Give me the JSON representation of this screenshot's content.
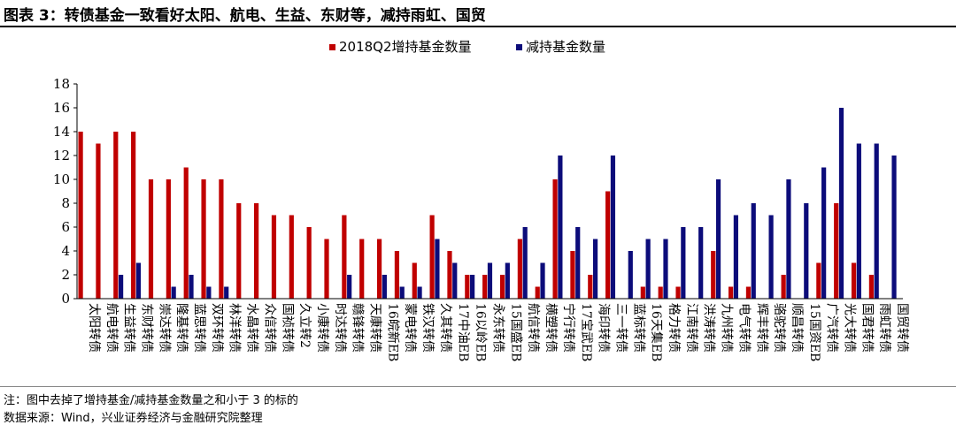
{
  "figure_title": "图表 3：转债基金一致看好太阳、航电、生益、东财等，减持雨虹、国贸",
  "notes": {
    "note": "注：图中去掉了增持基金/减持基金数量之和小于 3 的标的",
    "source": "数据来源：Wind，兴业证券经济与金融研究院整理"
  },
  "colors": {
    "increase": "#c00000",
    "decrease": "#0c0c7a",
    "axis": "#000000"
  },
  "chart_data": {
    "type": "bar",
    "legend_position": "top-center",
    "grid": false,
    "ylim": [
      0,
      18
    ],
    "yticks": [
      0,
      2,
      4,
      6,
      8,
      10,
      12,
      14,
      16,
      18
    ],
    "categories": [
      "太阳转债",
      "航电转债",
      "生益转债",
      "东财转债",
      "崇达转债",
      "隆基转债",
      "蓝思转债",
      "双环转债",
      "林洋转债",
      "水晶转债",
      "众信转债",
      "国祯转债",
      "久立转2",
      "小康转债",
      "时达转债",
      "赣锋转债",
      "天康转债",
      "16皖新EB",
      "蒙电转债",
      "铁汉转债",
      "久其转债",
      "17中油EB",
      "16以岭EB",
      "永东转债",
      "15国盛EB",
      "航信转债",
      "横塑转债",
      "宁行转债",
      "17宝武EB",
      "海印转债",
      "三一转债",
      "蓝标转债",
      "16天集EB",
      "格力转债",
      "江南转债",
      "洪涛转债",
      "九州转债",
      "电气转债",
      "辉丰转债",
      "骆驼转债",
      "顺昌转债",
      "15国资EB",
      "广汽转债",
      "光大转债",
      "国君转债",
      "雨虹转债",
      "国贸转债"
    ],
    "series": [
      {
        "name": "2018Q2增持基金数量",
        "color": "#c00000",
        "values": [
          14,
          13,
          14,
          14,
          10,
          10,
          11,
          10,
          10,
          8,
          8,
          7,
          7,
          6,
          5,
          7,
          5,
          5,
          4,
          3,
          7,
          4,
          2,
          2,
          2,
          5,
          1,
          10,
          4,
          2,
          9,
          0,
          1,
          1,
          1,
          0,
          4,
          1,
          1,
          0,
          2,
          0,
          3,
          8,
          3,
          2,
          0
        ]
      },
      {
        "name": "减持基金数量",
        "color": "#0c0c7a",
        "values": [
          0,
          0,
          2,
          3,
          0,
          1,
          2,
          1,
          1,
          0,
          0,
          0,
          0,
          0,
          0,
          2,
          0,
          2,
          1,
          1,
          5,
          3,
          2,
          3,
          3,
          6,
          3,
          12,
          6,
          5,
          12,
          4,
          5,
          5,
          6,
          6,
          10,
          7,
          8,
          7,
          10,
          8,
          11,
          16,
          13,
          13,
          12
        ]
      }
    ]
  }
}
